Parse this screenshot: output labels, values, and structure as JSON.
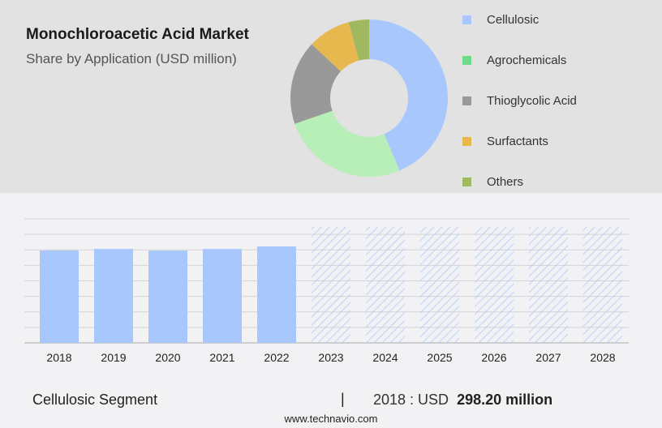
{
  "header": {
    "title": "Monochloroacetic Acid Market",
    "subtitle": "Share by Application (USD million)"
  },
  "chart_data": [
    {
      "type": "pie",
      "variant": "donut",
      "legend_position": "right",
      "slices": [
        {
          "name": "Cellulosic",
          "share": 43.7,
          "color": "#a8c8fd"
        },
        {
          "name": "Agrochemicals",
          "share": 26.0,
          "color": "#b8eeb8",
          "legend_color": "#6ddb8a"
        },
        {
          "name": "Thioglycolic Acid",
          "share": 17.3,
          "color": "#999999"
        },
        {
          "name": "Surfactants",
          "share": 8.8,
          "color": "#e6b84e"
        },
        {
          "name": "Others",
          "share": 4.2,
          "color": "#a0b860"
        }
      ]
    },
    {
      "type": "bar",
      "categories": [
        "2018",
        "2019",
        "2020",
        "2021",
        "2022",
        "2023",
        "2024",
        "2025",
        "2026",
        "2027",
        "2028"
      ],
      "values": [
        298.2,
        303,
        298,
        303,
        311,
        null,
        null,
        null,
        null,
        null,
        null
      ],
      "forecast": [
        false,
        false,
        false,
        false,
        false,
        true,
        true,
        true,
        true,
        true,
        true
      ],
      "color": "#a8c8fd",
      "ylim": [
        0,
        400
      ],
      "grid": true,
      "xlabel": "",
      "ylabel": ""
    }
  ],
  "footer": {
    "segment": "Cellulosic Segment",
    "separator": "|",
    "year_prefix": "2018 : USD",
    "value": "298.20 million",
    "website": "www.technavio.com"
  }
}
